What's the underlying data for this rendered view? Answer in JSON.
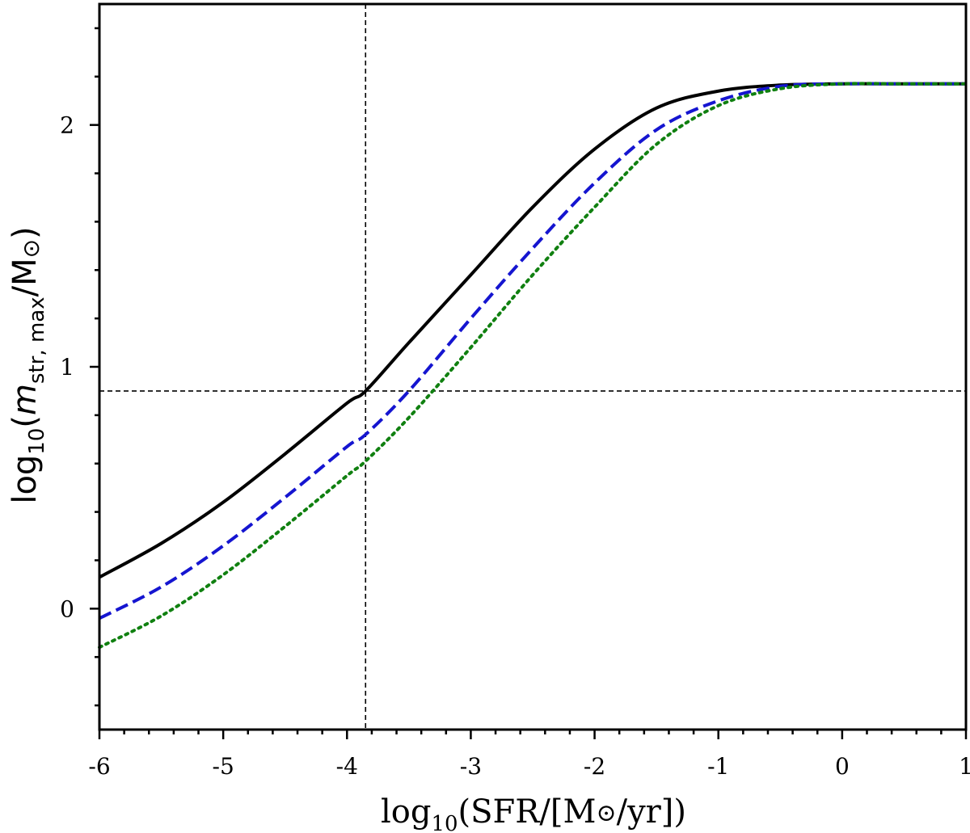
{
  "chart_data": {
    "type": "line",
    "xlabel": {
      "prefix": "log",
      "sub": "10",
      "body": "(SFR/[M",
      "sun": "⊙",
      "suffix": "/yr])"
    },
    "ylabel": {
      "prefix": "log",
      "sub": "10",
      "open": "(",
      "m": "m",
      "msub": "str, max",
      "mid": "/M",
      "sun": "⊙",
      "close": ")"
    },
    "xlim": [
      -6,
      1
    ],
    "ylim": [
      -0.5,
      2.5
    ],
    "xticks": [
      -6,
      -5,
      -4,
      -3,
      -2,
      -1,
      0,
      1
    ],
    "xtick_labels": [
      "-6",
      "-5",
      "-4",
      "-3",
      "-2",
      "-1",
      "0",
      "1"
    ],
    "yticks": [
      0,
      1,
      2
    ],
    "ytick_labels": [
      "0",
      "1",
      "2"
    ],
    "reference_lines": {
      "vertical_x": -3.85,
      "horizontal_y": 0.9
    },
    "series": [
      {
        "style": "solid",
        "color": "#000000",
        "x": [
          -6,
          -5.5,
          -5,
          -4.5,
          -4,
          -3.85,
          -3.5,
          -3,
          -2.5,
          -2,
          -1.5,
          -1,
          -0.5,
          0,
          0.5,
          1
        ],
        "y": [
          0.13,
          0.27,
          0.44,
          0.64,
          0.85,
          0.9,
          1.1,
          1.38,
          1.66,
          1.9,
          2.07,
          2.14,
          2.165,
          2.17,
          2.17,
          2.17
        ]
      },
      {
        "style": "dashed",
        "color": "#1515d0",
        "x": [
          -6,
          -5.5,
          -5,
          -4.5,
          -4,
          -3.85,
          -3.5,
          -3,
          -2.5,
          -2,
          -1.5,
          -1,
          -0.5,
          0,
          0.5,
          1
        ],
        "y": [
          -0.04,
          0.09,
          0.26,
          0.46,
          0.67,
          0.72,
          0.9,
          1.2,
          1.49,
          1.76,
          1.98,
          2.1,
          2.16,
          2.17,
          2.17,
          2.17
        ]
      },
      {
        "style": "dotted",
        "color": "#108010",
        "x": [
          -6,
          -5.5,
          -5,
          -4.5,
          -4,
          -3.85,
          -3.5,
          -3,
          -2.5,
          -2,
          -1.5,
          -1,
          -0.5,
          0,
          0.5,
          1
        ],
        "y": [
          -0.16,
          -0.03,
          0.14,
          0.34,
          0.55,
          0.61,
          0.79,
          1.08,
          1.38,
          1.66,
          1.92,
          2.08,
          2.15,
          2.17,
          2.17,
          2.17
        ]
      }
    ]
  }
}
